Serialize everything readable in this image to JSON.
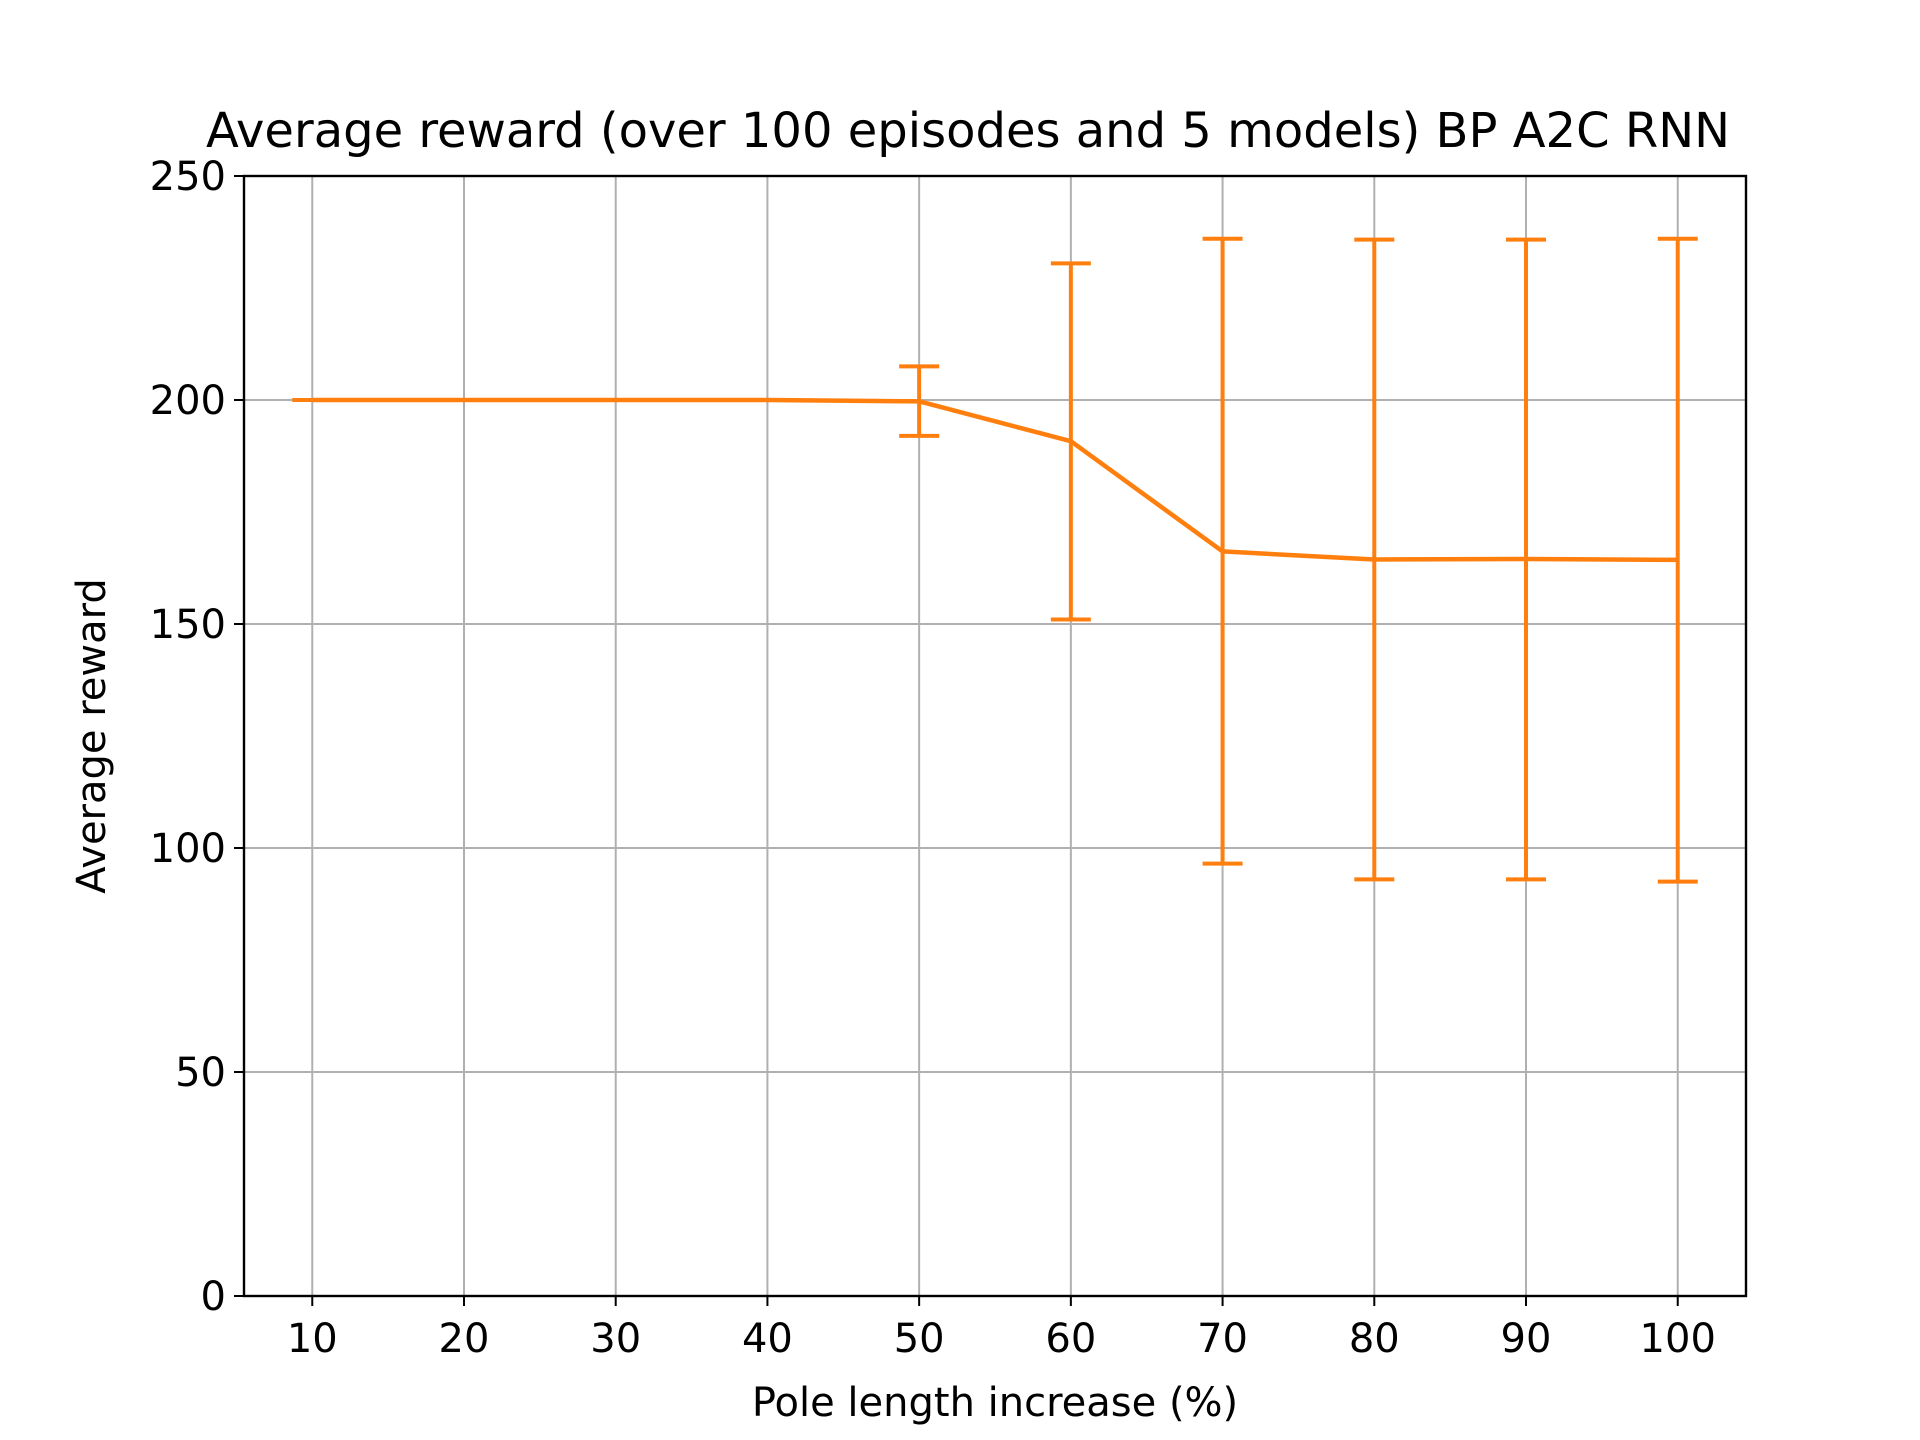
{
  "chart_data": {
    "type": "line",
    "title": "Average reward (over 100 episodes and 5 models) BP A2C RNN",
    "xlabel": "Pole length increase (%)",
    "ylabel": "Average reward",
    "x": [
      10,
      20,
      30,
      40,
      50,
      60,
      70,
      80,
      90,
      100
    ],
    "x_ticks": [
      "10",
      "20",
      "30",
      "40",
      "50",
      "60",
      "70",
      "80",
      "90",
      "100"
    ],
    "y_ticks": [
      "0",
      "50",
      "100",
      "150",
      "200",
      "250"
    ],
    "xlim": [
      5.5,
      104.5
    ],
    "ylim": [
      0,
      250
    ],
    "grid": true,
    "series": [
      {
        "values": [
          200,
          200,
          200,
          200,
          199.7,
          190.8,
          166.2,
          164.4,
          164.5,
          164.3
        ],
        "err_low": [
          200,
          200,
          200,
          200,
          192.0,
          151.0,
          96.5,
          93.0,
          93.0,
          92.5
        ],
        "err_high": [
          200,
          200,
          200,
          200,
          207.5,
          230.5,
          236.0,
          235.8,
          235.8,
          236.0
        ],
        "color": "#ff7f0e"
      }
    ]
  }
}
